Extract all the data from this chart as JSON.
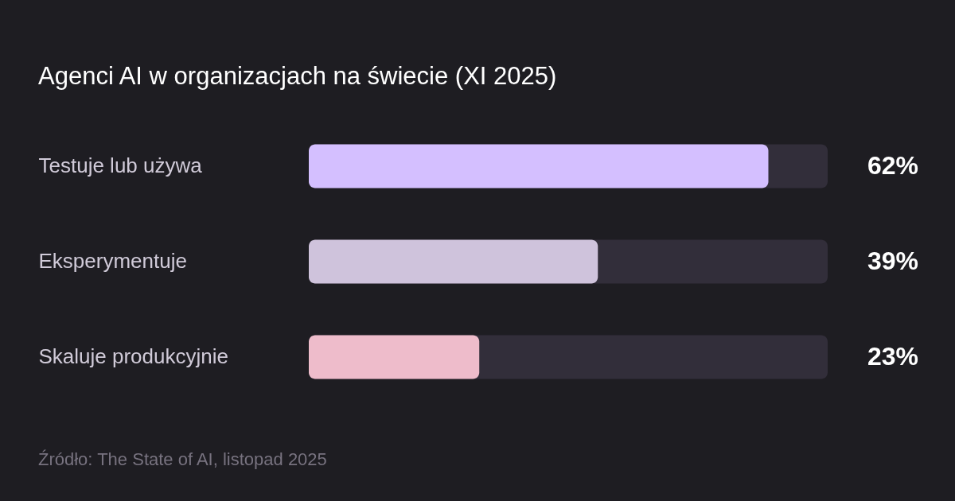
{
  "chart_data": {
    "type": "bar",
    "orientation": "horizontal",
    "title": "Agenci AI w organizacjach na świecie (XI 2025)",
    "categories": [
      "Testuje lub używa",
      "Eksperymentuje",
      "Skaluje produkcyjnie"
    ],
    "values": [
      62,
      39,
      23
    ],
    "colors": [
      "#d4bfff",
      "#cfc3dc",
      "#eebccb"
    ],
    "value_labels": [
      "62%",
      "39%",
      "23%"
    ],
    "xlim": [
      0,
      70
    ],
    "tick_labels": "y",
    "annotations": [
      "Źródło: The State of AI, listopad 2025"
    ]
  }
}
